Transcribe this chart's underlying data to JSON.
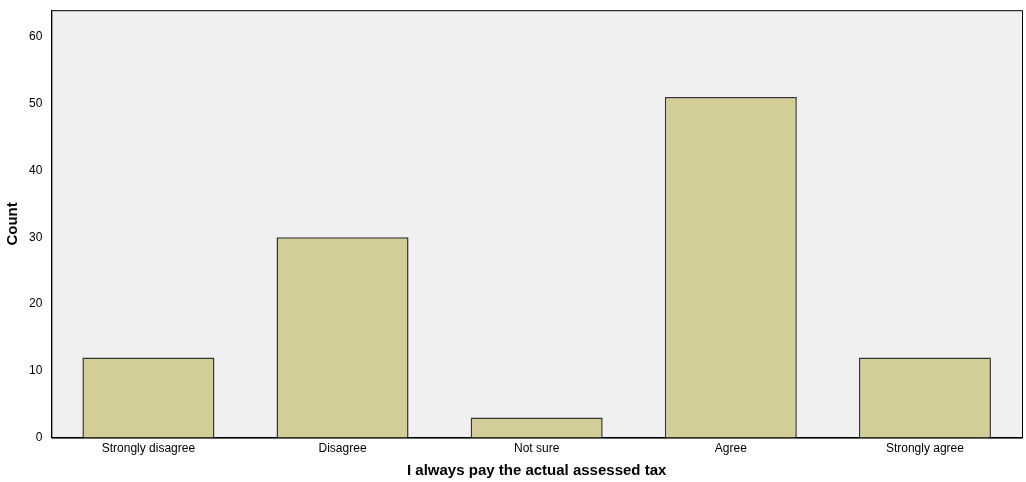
{
  "chart_data": {
    "type": "bar",
    "xlabel": "I always pay the actual assessed tax",
    "ylabel": "Count",
    "categories": [
      "Strongly disagree",
      "Disagree",
      "Not sure",
      "Agree",
      "Strongly agree"
    ],
    "values": [
      12,
      30,
      3,
      51,
      12
    ],
    "color": "#d3ce97",
    "ylim": [
      0,
      64
    ],
    "yticks": [
      0,
      10,
      20,
      30,
      40,
      50,
      60
    ],
    "grid": false,
    "legend": false
  }
}
